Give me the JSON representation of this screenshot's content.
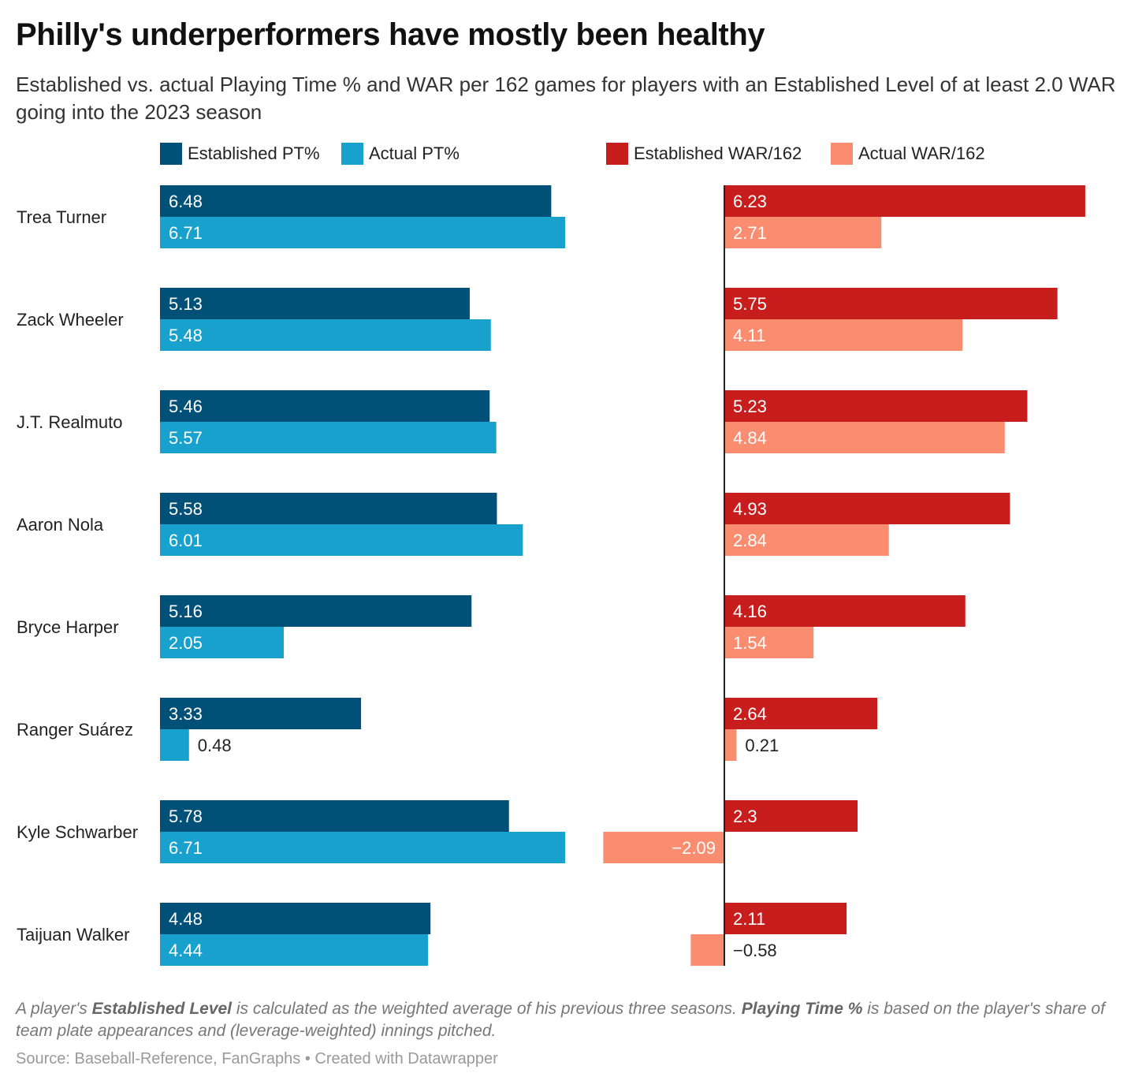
{
  "title": "Philly's underperformers have mostly been healthy",
  "subtitle": "Established vs. actual Playing Time % and WAR per 162 games for players with an Established Level of at least 2.0 WAR going into the 2023 season",
  "note": {
    "part1": "A player's ",
    "bold1": "Established Level",
    "part2": " is calculated as the weighted average of his previous three seasons. ",
    "bold2": "Playing Time %",
    "part3": " is based on the player's share of team plate appearances and (leverage-weighted) innings pitched."
  },
  "source": "Source: Baseball-Reference, FanGraphs • Created with Datawrapper",
  "colors": {
    "established_pt": "#005077",
    "actual_pt": "#18a1cd",
    "established_war": "#c71e1d",
    "actual_war": "#fa8c6f",
    "label_on_bar": "#ffffff",
    "label_off_bar": "#222222",
    "axis": "#222222"
  },
  "legend": [
    {
      "label": "Established PT%",
      "color": "#005077"
    },
    {
      "label": "Actual PT%",
      "color": "#18a1cd"
    },
    {
      "label": "Established WAR/162",
      "color": "#c71e1d"
    },
    {
      "label": "Actual WAR/162",
      "color": "#fa8c6f"
    }
  ],
  "chart_data": {
    "type": "bar",
    "orientation": "horizontal",
    "categories": [
      "Trea Turner",
      "Zack Wheeler",
      "J.T. Realmuto",
      "Aaron Nola",
      "Bryce Harper",
      "Ranger Suárez",
      "Kyle Schwarber",
      "Taijuan Walker"
    ],
    "panels": [
      {
        "series": [
          {
            "name": "Established PT%",
            "color": "#005077",
            "values": [
              6.48,
              5.13,
              5.46,
              5.58,
              5.16,
              3.33,
              5.78,
              4.48
            ]
          },
          {
            "name": "Actual PT%",
            "color": "#18a1cd",
            "values": [
              6.71,
              5.48,
              5.57,
              6.01,
              2.05,
              0.48,
              6.71,
              4.44
            ]
          }
        ]
      },
      {
        "series": [
          {
            "name": "Established WAR/162",
            "color": "#c71e1d",
            "values": [
              6.23,
              5.75,
              5.23,
              4.93,
              4.16,
              2.64,
              2.3,
              2.11
            ]
          },
          {
            "name": "Actual WAR/162",
            "color": "#fa8c6f",
            "values": [
              2.71,
              4.11,
              4.84,
              2.84,
              1.54,
              0.21,
              -2.09,
              -0.58
            ]
          }
        ]
      }
    ],
    "value_labels": {
      "Established PT%": [
        "6.48",
        "5.13",
        "5.46",
        "5.58",
        "5.16",
        "3.33",
        "5.78",
        "4.48"
      ],
      "Actual PT%": [
        "6.71",
        "5.48",
        "5.57",
        "6.01",
        "2.05",
        "0.48",
        "6.71",
        "4.44"
      ],
      "Established WAR/162": [
        "6.23",
        "5.75",
        "5.23",
        "4.93",
        "4.16",
        "2.64",
        "2.3",
        "2.11"
      ],
      "Actual WAR/162": [
        "2.71",
        "4.11",
        "4.84",
        "2.84",
        "1.54",
        "0.21",
        "−2.09",
        "−0.58"
      ]
    },
    "grid": false,
    "legend_position": "top"
  }
}
